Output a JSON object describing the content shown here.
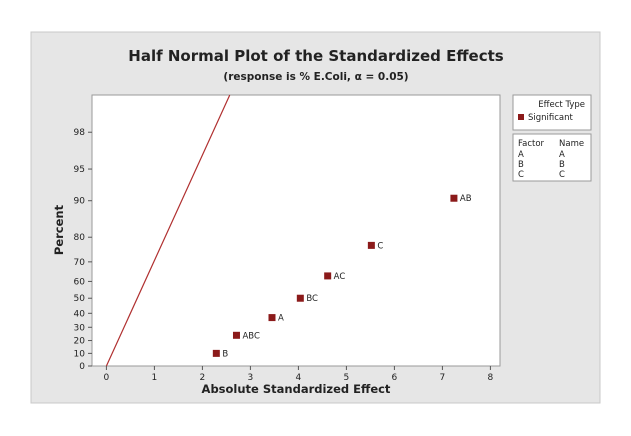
{
  "chart_data": {
    "type": "scatter",
    "title": "Half Normal Plot of the Standardized Effects",
    "subtitle": "(response is % E.Coli, α = 0.05)",
    "xlabel": "Absolute Standardized Effect",
    "ylabel": "Percent",
    "xlim": [
      -0.3,
      8.2
    ],
    "x_ticks": [
      0,
      1,
      2,
      3,
      4,
      5,
      6,
      7,
      8
    ],
    "y_ticks": [
      0,
      10,
      20,
      30,
      40,
      50,
      60,
      70,
      80,
      90,
      95,
      98
    ],
    "y_scale": "half-normal probability",
    "y_top": 99.3,
    "points": [
      {
        "label": "B",
        "x": 2.29,
        "y": 10
      },
      {
        "label": "ABC",
        "x": 2.71,
        "y": 24
      },
      {
        "label": "A",
        "x": 3.45,
        "y": 37
      },
      {
        "label": "BC",
        "x": 4.04,
        "y": 50
      },
      {
        "label": "AC",
        "x": 4.61,
        "y": 63
      },
      {
        "label": "C",
        "x": 5.52,
        "y": 77
      },
      {
        "label": "AB",
        "x": 7.24,
        "y": 90.5
      }
    ],
    "reference_line": {
      "x0": 0,
      "y0": 0,
      "x1": 2.57,
      "y1": 99.3
    },
    "grid": false,
    "legend": {
      "placement": "right",
      "title": "Effect Type",
      "entries": [
        "Significant"
      ],
      "factor_header": "Factor",
      "name_header": "Name",
      "factors": [
        {
          "factor": "A",
          "name": "A"
        },
        {
          "factor": "B",
          "name": "B"
        },
        {
          "factor": "C",
          "name": "C"
        }
      ]
    },
    "colors": {
      "outer_background": "#e6e6e6",
      "plot_background": "#ffffff",
      "marker": "#8b1a1a",
      "line": "#b03030"
    }
  }
}
